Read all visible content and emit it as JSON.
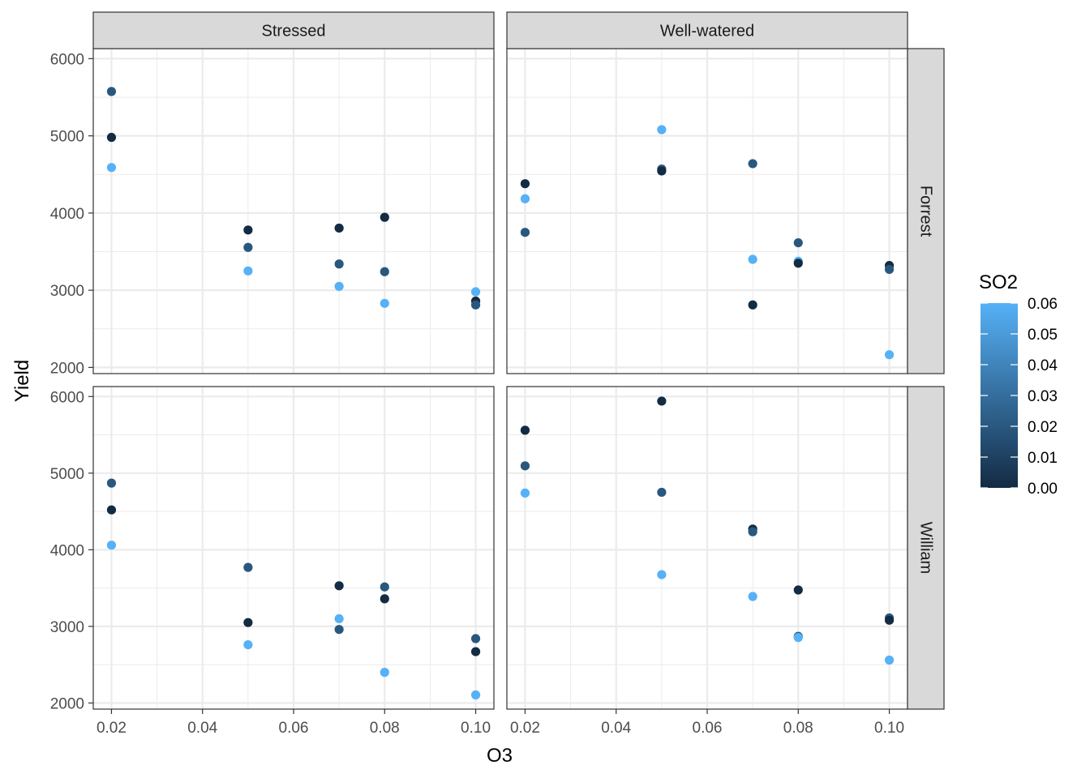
{
  "chart_data": {
    "type": "scatter",
    "xlabel": "O3",
    "ylabel": "Yield",
    "xlim": [
      0.016,
      0.104
    ],
    "ylim": [
      1920,
      6130
    ],
    "x_ticks": [
      0.02,
      0.04,
      0.06,
      0.08,
      0.1
    ],
    "x_tick_labels": [
      "0.02",
      "0.04",
      "0.06",
      "0.08",
      "0.10"
    ],
    "y_ticks": [
      2000,
      3000,
      4000,
      5000,
      6000
    ],
    "y_tick_labels": [
      "2000",
      "3000",
      "4000",
      "5000",
      "6000"
    ],
    "grid": true,
    "facet_columns": [
      "Stressed",
      "Well-watered"
    ],
    "facet_rows": [
      "Forrest",
      "William"
    ],
    "color_scale": {
      "title": "SO2",
      "low_color": "#132B43",
      "high_color": "#56B1F7",
      "range": [
        0,
        0.06
      ],
      "ticks": [
        0.0,
        0.01,
        0.02,
        0.03,
        0.04,
        0.05,
        0.06
      ],
      "tick_labels": [
        "0.00",
        "0.01",
        "0.02",
        "0.03",
        "0.04",
        "0.05",
        "0.06"
      ],
      "legend_placement": "right"
    },
    "panels": [
      {
        "row": "Forrest",
        "col": "Stressed",
        "points": [
          {
            "x": 0.02,
            "y": 5575,
            "so2": 0.02
          },
          {
            "x": 0.02,
            "y": 4980,
            "so2": 0.0
          },
          {
            "x": 0.02,
            "y": 4590,
            "so2": 0.06
          },
          {
            "x": 0.05,
            "y": 3780,
            "so2": 0.0
          },
          {
            "x": 0.05,
            "y": 3555,
            "so2": 0.02
          },
          {
            "x": 0.05,
            "y": 3250,
            "so2": 0.06
          },
          {
            "x": 0.07,
            "y": 3805,
            "so2": 0.0
          },
          {
            "x": 0.07,
            "y": 3340,
            "so2": 0.02
          },
          {
            "x": 0.07,
            "y": 3050,
            "so2": 0.06
          },
          {
            "x": 0.08,
            "y": 3945,
            "so2": 0.0
          },
          {
            "x": 0.08,
            "y": 3240,
            "so2": 0.02
          },
          {
            "x": 0.08,
            "y": 2830,
            "so2": 0.06
          },
          {
            "x": 0.1,
            "y": 2980,
            "so2": 0.06
          },
          {
            "x": 0.1,
            "y": 2860,
            "so2": 0.0
          },
          {
            "x": 0.1,
            "y": 2810,
            "so2": 0.02
          }
        ]
      },
      {
        "row": "Forrest",
        "col": "Well-watered",
        "points": [
          {
            "x": 0.02,
            "y": 4380,
            "so2": 0.0
          },
          {
            "x": 0.02,
            "y": 4185,
            "so2": 0.06
          },
          {
            "x": 0.02,
            "y": 3750,
            "so2": 0.02
          },
          {
            "x": 0.05,
            "y": 5080,
            "so2": 0.06
          },
          {
            "x": 0.05,
            "y": 4570,
            "so2": 0.02
          },
          {
            "x": 0.05,
            "y": 4545,
            "so2": 0.0
          },
          {
            "x": 0.07,
            "y": 4640,
            "so2": 0.02
          },
          {
            "x": 0.07,
            "y": 3400,
            "so2": 0.06
          },
          {
            "x": 0.07,
            "y": 2810,
            "so2": 0.0
          },
          {
            "x": 0.08,
            "y": 3615,
            "so2": 0.02
          },
          {
            "x": 0.08,
            "y": 3375,
            "so2": 0.06
          },
          {
            "x": 0.08,
            "y": 3350,
            "so2": 0.0
          },
          {
            "x": 0.1,
            "y": 3320,
            "so2": 0.0
          },
          {
            "x": 0.1,
            "y": 3270,
            "so2": 0.02
          },
          {
            "x": 0.1,
            "y": 2165,
            "so2": 0.06
          }
        ]
      },
      {
        "row": "William",
        "col": "Stressed",
        "points": [
          {
            "x": 0.02,
            "y": 4870,
            "so2": 0.02
          },
          {
            "x": 0.02,
            "y": 4520,
            "so2": 0.0
          },
          {
            "x": 0.02,
            "y": 4060,
            "so2": 0.06
          },
          {
            "x": 0.05,
            "y": 3770,
            "so2": 0.02
          },
          {
            "x": 0.05,
            "y": 3050,
            "so2": 0.0
          },
          {
            "x": 0.05,
            "y": 2760,
            "so2": 0.06
          },
          {
            "x": 0.07,
            "y": 3530,
            "so2": 0.0
          },
          {
            "x": 0.07,
            "y": 3100,
            "so2": 0.06
          },
          {
            "x": 0.07,
            "y": 2960,
            "so2": 0.02
          },
          {
            "x": 0.08,
            "y": 3515,
            "so2": 0.02
          },
          {
            "x": 0.08,
            "y": 3360,
            "so2": 0.0
          },
          {
            "x": 0.08,
            "y": 2400,
            "so2": 0.06
          },
          {
            "x": 0.1,
            "y": 2840,
            "so2": 0.02
          },
          {
            "x": 0.1,
            "y": 2670,
            "so2": 0.0
          },
          {
            "x": 0.1,
            "y": 2105,
            "so2": 0.06
          }
        ]
      },
      {
        "row": "William",
        "col": "Well-watered",
        "points": [
          {
            "x": 0.02,
            "y": 5560,
            "so2": 0.0
          },
          {
            "x": 0.02,
            "y": 5095,
            "so2": 0.02
          },
          {
            "x": 0.02,
            "y": 4740,
            "so2": 0.06
          },
          {
            "x": 0.05,
            "y": 5940,
            "so2": 0.0
          },
          {
            "x": 0.05,
            "y": 4750,
            "so2": 0.02
          },
          {
            "x": 0.05,
            "y": 3675,
            "so2": 0.06
          },
          {
            "x": 0.07,
            "y": 4270,
            "so2": 0.0
          },
          {
            "x": 0.07,
            "y": 4235,
            "so2": 0.02
          },
          {
            "x": 0.07,
            "y": 3390,
            "so2": 0.06
          },
          {
            "x": 0.08,
            "y": 3475,
            "so2": 0.0
          },
          {
            "x": 0.08,
            "y": 2870,
            "so2": 0.02
          },
          {
            "x": 0.08,
            "y": 2855,
            "so2": 0.06
          },
          {
            "x": 0.1,
            "y": 3110,
            "so2": 0.02
          },
          {
            "x": 0.1,
            "y": 3080,
            "so2": 0.0
          },
          {
            "x": 0.1,
            "y": 2560,
            "so2": 0.06
          }
        ]
      }
    ]
  }
}
